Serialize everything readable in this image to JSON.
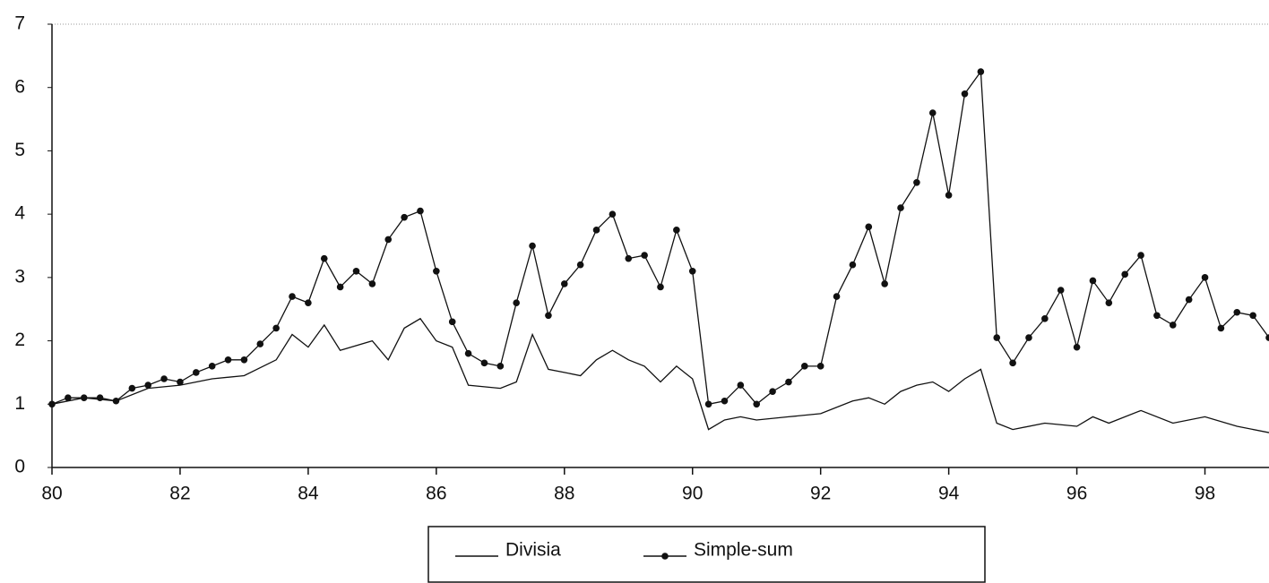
{
  "chart_data": {
    "type": "line",
    "xlim": [
      80,
      99
    ],
    "xticks": [
      80,
      82,
      84,
      86,
      88,
      90,
      92,
      94,
      96,
      98
    ],
    "ylim": [
      0,
      7
    ],
    "yticks": [
      0,
      1,
      2,
      3,
      4,
      5,
      6,
      7
    ],
    "series": [
      {
        "name": "Divisia",
        "color": "#111111",
        "marker": false,
        "x": [
          80,
          80.5,
          81,
          81.5,
          82,
          82.5,
          83,
          83.5,
          83.75,
          84,
          84.25,
          84.5,
          85,
          85.25,
          85.5,
          85.75,
          86,
          86.25,
          86.5,
          87,
          87.25,
          87.5,
          87.75,
          88,
          88.25,
          88.5,
          88.75,
          89,
          89.25,
          89.5,
          89.75,
          90,
          90.25,
          90.5,
          90.75,
          91,
          91.5,
          92,
          92.5,
          92.75,
          93,
          93.25,
          93.5,
          93.75,
          94,
          94.25,
          94.5,
          94.75,
          95,
          95.5,
          96,
          96.25,
          96.5,
          97,
          97.5,
          98,
          98.5,
          99
        ],
        "values": [
          1.0,
          1.1,
          1.05,
          1.25,
          1.3,
          1.4,
          1.45,
          1.7,
          2.1,
          1.9,
          2.25,
          1.85,
          2.0,
          1.7,
          2.2,
          2.35,
          2.0,
          1.9,
          1.3,
          1.25,
          1.35,
          2.1,
          1.55,
          1.5,
          1.45,
          1.7,
          1.85,
          1.7,
          1.6,
          1.35,
          1.6,
          1.4,
          0.6,
          0.75,
          0.8,
          0.75,
          0.8,
          0.85,
          1.05,
          1.1,
          1.0,
          1.2,
          1.3,
          1.35,
          1.2,
          1.4,
          1.55,
          0.7,
          0.6,
          0.7,
          0.65,
          0.8,
          0.7,
          0.9,
          0.7,
          0.8,
          0.65,
          0.55
        ]
      },
      {
        "name": "Simple-sum",
        "color": "#111111",
        "marker": true,
        "x": [
          80,
          80.25,
          80.5,
          80.75,
          81,
          81.25,
          81.5,
          81.75,
          82,
          82.25,
          82.5,
          82.75,
          83,
          83.25,
          83.5,
          83.75,
          84,
          84.25,
          84.5,
          84.75,
          85,
          85.25,
          85.5,
          85.75,
          86,
          86.25,
          86.5,
          86.75,
          87,
          87.25,
          87.5,
          87.75,
          88,
          88.25,
          88.5,
          88.75,
          89,
          89.25,
          89.5,
          89.75,
          90,
          90.25,
          90.5,
          90.75,
          91,
          91.25,
          91.5,
          91.75,
          92,
          92.25,
          92.5,
          92.75,
          93,
          93.25,
          93.5,
          93.75,
          94,
          94.25,
          94.5,
          94.75,
          95,
          95.25,
          95.5,
          95.75,
          96,
          96.25,
          96.5,
          96.75,
          97,
          97.25,
          97.5,
          97.75,
          98,
          98.25,
          98.5,
          98.75,
          99
        ],
        "values": [
          1.0,
          1.1,
          1.1,
          1.1,
          1.05,
          1.25,
          1.3,
          1.4,
          1.35,
          1.5,
          1.6,
          1.7,
          1.7,
          1.95,
          2.2,
          2.7,
          2.6,
          3.3,
          2.85,
          3.1,
          2.9,
          3.6,
          3.95,
          4.05,
          3.1,
          2.3,
          1.8,
          1.65,
          1.6,
          2.6,
          3.5,
          2.4,
          2.9,
          3.2,
          3.75,
          4.0,
          3.3,
          3.35,
          2.85,
          3.75,
          3.1,
          1.0,
          1.05,
          1.3,
          1.0,
          1.2,
          1.35,
          1.6,
          1.6,
          2.7,
          3.2,
          3.8,
          2.9,
          4.1,
          4.5,
          5.6,
          4.3,
          5.9,
          6.25,
          2.05,
          1.65,
          2.05,
          2.35,
          2.8,
          1.9,
          2.95,
          2.6,
          3.05,
          3.35,
          2.4,
          2.25,
          2.65,
          3.0,
          2.2,
          2.45,
          2.4,
          2.05
        ]
      }
    ],
    "legend": "bottom"
  }
}
